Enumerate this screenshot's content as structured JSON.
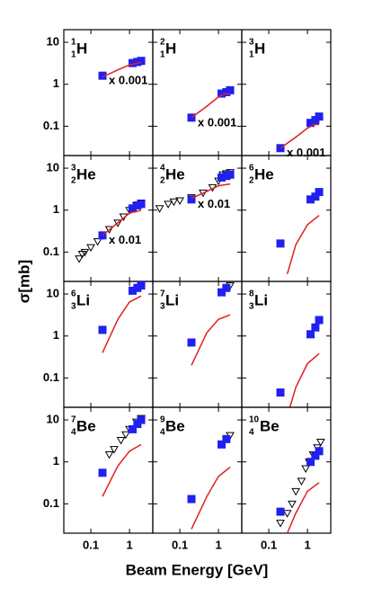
{
  "axes": {
    "y_label": "σ[mb]",
    "x_label": "Beam Energy [GeV]",
    "log": true,
    "xlim": [
      0.02,
      4
    ],
    "ylim": [
      0.02,
      20
    ],
    "xticks": [
      0.1,
      1
    ],
    "yticks": [
      0.1,
      1,
      10
    ]
  },
  "chart_data": [
    {
      "type": "scatter",
      "nuclide": {
        "mass": "1",
        "charge": "1",
        "symbol": "H"
      },
      "annotation": "x 0.001",
      "series": [
        {
          "kind": "square",
          "color": "#2020f0",
          "x": [
            0.2,
            1.2,
            1.6,
            2.0
          ],
          "values": [
            1.6,
            3.2,
            3.4,
            3.6
          ]
        },
        {
          "kind": "line",
          "color": "#e0201c",
          "x": [
            0.2,
            0.5,
            1,
            2
          ],
          "values": [
            1.5,
            2.2,
            2.9,
            3.3
          ]
        }
      ]
    },
    {
      "type": "scatter",
      "nuclide": {
        "mass": "2",
        "charge": "1",
        "symbol": "H"
      },
      "annotation": "x 0.001",
      "series": [
        {
          "kind": "square",
          "color": "#2020f0",
          "x": [
            0.2,
            1.2,
            1.6,
            2.0
          ],
          "values": [
            0.16,
            0.6,
            0.65,
            0.72
          ]
        },
        {
          "kind": "line",
          "color": "#e0201c",
          "x": [
            0.2,
            0.5,
            1,
            1.5,
            2
          ],
          "values": [
            0.16,
            0.3,
            0.5,
            0.6,
            0.6
          ]
        }
      ]
    },
    {
      "type": "scatter",
      "nuclide": {
        "mass": "3",
        "charge": "1",
        "symbol": "H"
      },
      "annotation": "x 0.001",
      "series": [
        {
          "kind": "square",
          "color": "#2020f0",
          "x": [
            0.2,
            1.2,
            1.6,
            2.0
          ],
          "values": [
            0.03,
            0.12,
            0.14,
            0.17
          ]
        },
        {
          "kind": "line",
          "color": "#e0201c",
          "x": [
            0.2,
            0.5,
            1,
            1.5,
            2
          ],
          "values": [
            0.03,
            0.055,
            0.09,
            0.11,
            0.11
          ]
        }
      ]
    },
    {
      "type": "scatter",
      "nuclide": {
        "mass": "3",
        "charge": "2",
        "symbol": "He"
      },
      "annotation": "x 0.01",
      "series": [
        {
          "kind": "triangle",
          "color": "#000000",
          "x": [
            0.05,
            0.06,
            0.07,
            0.1,
            0.15,
            0.2,
            0.3,
            0.5,
            0.7,
            1,
            1.5,
            2
          ],
          "values": [
            0.07,
            0.09,
            0.1,
            0.13,
            0.18,
            0.25,
            0.35,
            0.5,
            0.7,
            1.0,
            1.3,
            1.5
          ]
        },
        {
          "kind": "square",
          "color": "#2020f0",
          "x": [
            0.2,
            1.2,
            1.6,
            2.0
          ],
          "values": [
            0.25,
            1.1,
            1.3,
            1.4
          ]
        },
        {
          "kind": "line",
          "color": "#e0201c",
          "x": [
            0.2,
            0.5,
            1,
            2
          ],
          "values": [
            0.25,
            0.5,
            0.85,
            1.0
          ]
        }
      ]
    },
    {
      "type": "scatter",
      "nuclide": {
        "mass": "4",
        "charge": "2",
        "symbol": "He"
      },
      "annotation": "x 0.01",
      "series": [
        {
          "kind": "triangle",
          "color": "#000000",
          "x": [
            0.03,
            0.05,
            0.07,
            0.1,
            0.2,
            0.4,
            0.7,
            1,
            1.3,
            1.6,
            2
          ],
          "values": [
            1.1,
            1.4,
            1.6,
            1.7,
            2,
            2.6,
            3.5,
            5,
            7,
            7.5,
            8
          ]
        },
        {
          "kind": "square",
          "color": "#2020f0",
          "x": [
            0.2,
            1.2,
            1.6,
            2.0
          ],
          "values": [
            1.8,
            6,
            6.5,
            7
          ]
        },
        {
          "kind": "line",
          "color": "#e0201c",
          "x": [
            0.2,
            0.5,
            1,
            2
          ],
          "values": [
            1.9,
            2.8,
            3.8,
            4.2
          ]
        }
      ]
    },
    {
      "type": "scatter",
      "nuclide": {
        "mass": "6",
        "charge": "2",
        "symbol": "He"
      },
      "series": [
        {
          "kind": "square",
          "color": "#2020f0",
          "x": [
            0.2,
            1.2,
            1.6,
            2.0
          ],
          "values": [
            0.16,
            1.8,
            2.1,
            2.7
          ]
        },
        {
          "kind": "line",
          "color": "#e0201c",
          "x": [
            0.3,
            0.5,
            1,
            2
          ],
          "values": [
            0.03,
            0.15,
            0.45,
            0.75
          ]
        }
      ]
    },
    {
      "type": "scatter",
      "nuclide": {
        "mass": "6",
        "charge": "3",
        "symbol": "Li"
      },
      "series": [
        {
          "kind": "square",
          "color": "#2020f0",
          "x": [
            0.2,
            1.2,
            1.6,
            2.0
          ],
          "values": [
            1.4,
            12,
            14,
            16
          ]
        },
        {
          "kind": "line",
          "color": "#e0201c",
          "x": [
            0.2,
            0.5,
            1,
            2
          ],
          "values": [
            0.4,
            2.5,
            6.5,
            9
          ]
        }
      ]
    },
    {
      "type": "scatter",
      "nuclide": {
        "mass": "7",
        "charge": "3",
        "symbol": "Li"
      },
      "series": [
        {
          "kind": "triangle",
          "color": "#000000",
          "x": [
            2
          ],
          "values": [
            16
          ]
        },
        {
          "kind": "square",
          "color": "#2020f0",
          "x": [
            0.2,
            1.2,
            1.6
          ],
          "values": [
            0.7,
            11,
            14
          ]
        },
        {
          "kind": "line",
          "color": "#e0201c",
          "x": [
            0.2,
            0.5,
            1,
            2
          ],
          "values": [
            0.2,
            1.2,
            2.5,
            3.2
          ]
        }
      ]
    },
    {
      "type": "scatter",
      "nuclide": {
        "mass": "8",
        "charge": "3",
        "symbol": "Li"
      },
      "series": [
        {
          "kind": "square",
          "color": "#2020f0",
          "x": [
            0.2,
            1.2,
            1.6,
            2.0
          ],
          "values": [
            0.045,
            1.1,
            1.6,
            2.4
          ]
        },
        {
          "kind": "line",
          "color": "#e0201c",
          "x": [
            0.35,
            0.5,
            1,
            2
          ],
          "values": [
            0.02,
            0.06,
            0.22,
            0.38
          ]
        }
      ]
    },
    {
      "type": "scatter",
      "nuclide": {
        "mass": "7",
        "charge": "4",
        "symbol": "Be"
      },
      "series": [
        {
          "kind": "triangle",
          "color": "#000000",
          "x": [
            0.3,
            0.4,
            0.6,
            0.8,
            1,
            1.5,
            2
          ],
          "values": [
            1.5,
            2,
            3.3,
            4.5,
            6,
            9,
            11
          ]
        },
        {
          "kind": "square",
          "color": "#2020f0",
          "x": [
            0.2,
            1.2,
            1.6,
            2.0
          ],
          "values": [
            0.55,
            6,
            8,
            10
          ]
        },
        {
          "kind": "line",
          "color": "#e0201c",
          "x": [
            0.2,
            0.5,
            1,
            2
          ],
          "values": [
            0.15,
            0.8,
            1.8,
            2.6
          ]
        }
      ]
    },
    {
      "type": "scatter",
      "nuclide": {
        "mass": "9",
        "charge": "4",
        "symbol": "Be"
      },
      "series": [
        {
          "kind": "triangle",
          "color": "#000000",
          "x": [
            2
          ],
          "values": [
            4.3
          ]
        },
        {
          "kind": "square",
          "color": "#2020f0",
          "x": [
            0.2,
            1.2,
            1.6
          ],
          "values": [
            0.13,
            2.6,
            3.5
          ]
        },
        {
          "kind": "line",
          "color": "#e0201c",
          "x": [
            0.2,
            0.5,
            1,
            2
          ],
          "values": [
            0.025,
            0.15,
            0.45,
            0.75
          ]
        }
      ]
    },
    {
      "type": "scatter",
      "nuclide": {
        "mass": "10",
        "charge": "4",
        "symbol": "Be"
      },
      "series": [
        {
          "kind": "triangle",
          "color": "#000000",
          "x": [
            0.2,
            0.3,
            0.4,
            0.5,
            0.7,
            0.9,
            1.1,
            1.4,
            1.8,
            2.2
          ],
          "values": [
            0.035,
            0.06,
            0.1,
            0.2,
            0.35,
            0.7,
            1,
            1.5,
            2.2,
            3
          ]
        },
        {
          "kind": "square",
          "color": "#2020f0",
          "x": [
            0.2,
            1.2,
            1.6,
            2.0
          ],
          "values": [
            0.065,
            1,
            1.4,
            1.8
          ]
        },
        {
          "kind": "line",
          "color": "#e0201c",
          "x": [
            0.3,
            0.5,
            1,
            2
          ],
          "values": [
            0.02,
            0.06,
            0.2,
            0.32
          ]
        }
      ]
    }
  ]
}
